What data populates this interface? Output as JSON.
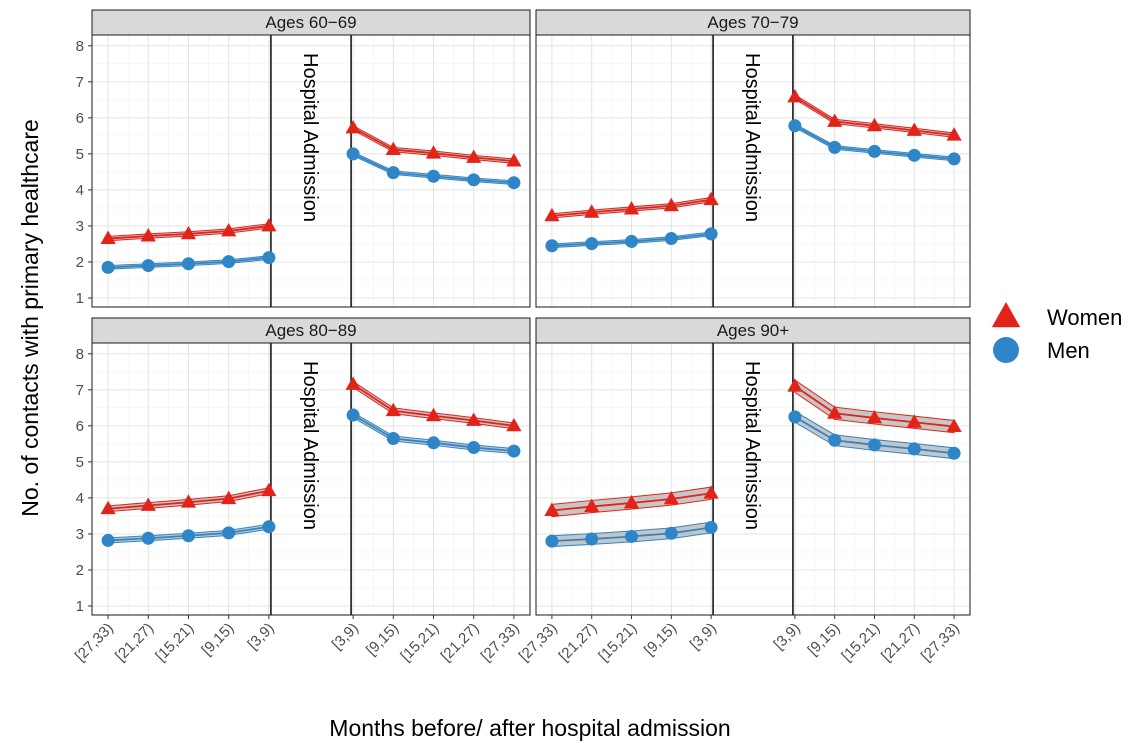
{
  "chart_data": {
    "type": "line",
    "y_title": "No. of contacts with primary healthcare",
    "x_title": "Months before/ after hospital admission",
    "x_categories": [
      "[27,33)",
      "[21,27)",
      "[15,21)",
      "[9,15)",
      "[3,9)",
      "[3,9)",
      "[9,15)",
      "[15,21)",
      "[21,27)",
      "[27,33)"
    ],
    "y_ticks": [
      1,
      2,
      3,
      4,
      5,
      6,
      7,
      8
    ],
    "ylim": [
      0.75,
      8.3
    ],
    "event_label": "Hospital Admission",
    "grid": true,
    "legend_position": "right",
    "legend": [
      {
        "name": "Women",
        "shape": "triangle",
        "color": "#e2231a"
      },
      {
        "name": "Men",
        "shape": "circle",
        "color": "#2e86c8"
      }
    ],
    "colors": {
      "women": "#e2231a",
      "men": "#2e86c8",
      "ribbon": "#b3b3b3"
    },
    "panels": [
      {
        "title": "Ages 60−69",
        "series": [
          {
            "name": "Women",
            "before": [
              2.65,
              2.72,
              2.78,
              2.86,
              3.0
            ],
            "after": [
              5.72,
              5.12,
              5.02,
              4.9,
              4.8
            ],
            "ci_half": 0.06
          },
          {
            "name": "Men",
            "before": [
              1.85,
              1.9,
              1.95,
              2.01,
              2.12
            ],
            "after": [
              5.0,
              4.48,
              4.38,
              4.28,
              4.2
            ],
            "ci_half": 0.05
          }
        ]
      },
      {
        "title": "Ages 70−79",
        "series": [
          {
            "name": "Women",
            "before": [
              3.28,
              3.38,
              3.47,
              3.56,
              3.73
            ],
            "after": [
              6.58,
              5.9,
              5.78,
              5.65,
              5.52
            ],
            "ci_half": 0.06
          },
          {
            "name": "Men",
            "before": [
              2.45,
              2.51,
              2.57,
              2.65,
              2.78
            ],
            "after": [
              5.78,
              5.18,
              5.07,
              4.96,
              4.86
            ],
            "ci_half": 0.05
          }
        ]
      },
      {
        "title": "Ages 80−89",
        "series": [
          {
            "name": "Women",
            "before": [
              3.7,
              3.79,
              3.88,
              3.98,
              4.2
            ],
            "after": [
              7.15,
              6.42,
              6.28,
              6.15,
              6.0
            ],
            "ci_half": 0.08
          },
          {
            "name": "Men",
            "before": [
              2.82,
              2.88,
              2.95,
              3.03,
              3.2
            ],
            "after": [
              6.3,
              5.65,
              5.53,
              5.4,
              5.3
            ],
            "ci_half": 0.07
          }
        ]
      },
      {
        "title": "Ages 90+",
        "series": [
          {
            "name": "Women",
            "before": [
              3.65,
              3.76,
              3.86,
              3.97,
              4.13
            ],
            "after": [
              7.1,
              6.35,
              6.22,
              6.1,
              5.98
            ],
            "ci_half": 0.17
          },
          {
            "name": "Men",
            "before": [
              2.8,
              2.86,
              2.93,
              3.02,
              3.18
            ],
            "after": [
              6.25,
              5.6,
              5.47,
              5.36,
              5.24
            ],
            "ci_half": 0.15
          }
        ]
      }
    ]
  }
}
